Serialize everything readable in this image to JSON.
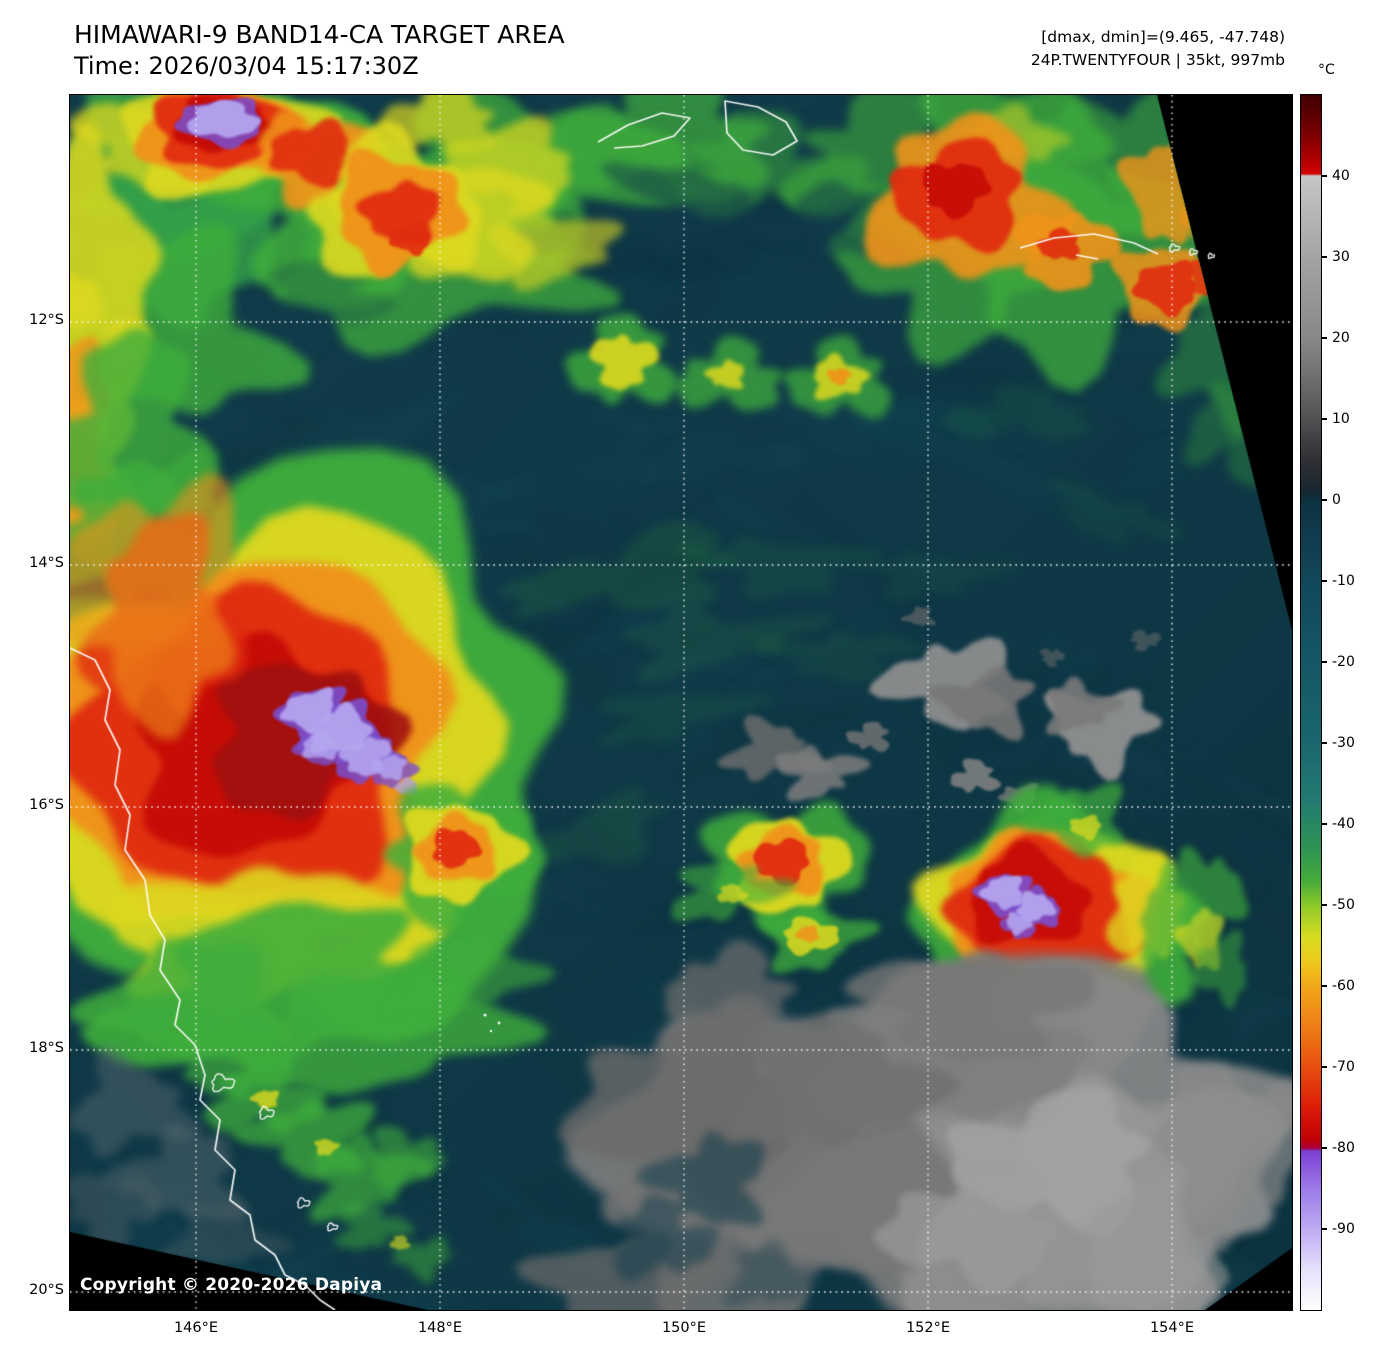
{
  "header": {
    "title": "HIMAWARI-9 BAND14-CA TARGET AREA",
    "time_line": "Time: 2026/03/04 15:17:30Z",
    "dmax_dmin": "[dmax, dmin]=(9.465, -47.748)",
    "storm_info": "24P.TWENTYFOUR | 35kt, 997mb"
  },
  "map": {
    "copyright": "Copyright © 2020-2026 Dapiya",
    "lat_tick_labels": [
      "12°S",
      "14°S",
      "16°S",
      "18°S",
      "20°S"
    ],
    "lon_tick_labels": [
      "146°E",
      "148°E",
      "150°E",
      "152°E",
      "154°E"
    ]
  },
  "colorbar": {
    "unit": "°C",
    "domain_max": 50,
    "domain_min": -100,
    "tick_labels": [
      "40",
      "30",
      "20",
      "10",
      "0",
      "-10",
      "-20",
      "-30",
      "-40",
      "-50",
      "-60",
      "-70",
      "-80",
      "-90"
    ],
    "tick_values": [
      40,
      30,
      20,
      10,
      0,
      -10,
      -20,
      -30,
      -40,
      -50,
      -60,
      -70,
      -80,
      -90
    ],
    "stops": [
      {
        "t": 50,
        "color": "#3f0003"
      },
      {
        "t": 46,
        "color": "#6f0002"
      },
      {
        "t": 42,
        "color": "#b00000"
      },
      {
        "t": 40.3,
        "color": "#d40000"
      },
      {
        "t": 40,
        "color": "#c6c6c6"
      },
      {
        "t": 30,
        "color": "#a4a4a4"
      },
      {
        "t": 20,
        "color": "#888888"
      },
      {
        "t": 12,
        "color": "#5e5e5e"
      },
      {
        "t": 5,
        "color": "#303036"
      },
      {
        "t": 1,
        "color": "#16272f"
      },
      {
        "t": 0,
        "color": "#0e3242"
      },
      {
        "t": -10,
        "color": "#12475a"
      },
      {
        "t": -20,
        "color": "#155766"
      },
      {
        "t": -30,
        "color": "#1a666d"
      },
      {
        "t": -37,
        "color": "#227a70"
      },
      {
        "t": -43,
        "color": "#2f9355"
      },
      {
        "t": -47,
        "color": "#45ab3a"
      },
      {
        "t": -50,
        "color": "#8cc829"
      },
      {
        "t": -54,
        "color": "#d8dc20"
      },
      {
        "t": -57,
        "color": "#eeca1d"
      },
      {
        "t": -60,
        "color": "#f2a71b"
      },
      {
        "t": -65,
        "color": "#ee7d15"
      },
      {
        "t": -70,
        "color": "#e84e0f"
      },
      {
        "t": -75,
        "color": "#dc1c08"
      },
      {
        "t": -79,
        "color": "#c10005"
      },
      {
        "t": -80,
        "color": "#ab0040"
      },
      {
        "t": -80.4,
        "color": "#7a3fd4"
      },
      {
        "t": -85,
        "color": "#9b7ae8"
      },
      {
        "t": -90,
        "color": "#bfaaf2"
      },
      {
        "t": -95,
        "color": "#e6e0fa"
      },
      {
        "t": -100,
        "color": "#ffffff"
      }
    ]
  },
  "palette": {
    "ocean": "#0f3a49",
    "green": "#3fae3c",
    "yellow": "#ddd81f",
    "orange": "#f0921a",
    "red": "#e02c10",
    "dark_red": "#c40b06",
    "lavender": "#b4a4ee",
    "purple": "#7a4fd0",
    "cloud_gray": "#8a8a8a",
    "coastline": "#ffffff",
    "grid": "#ffffff",
    "offscan": "#000000"
  }
}
